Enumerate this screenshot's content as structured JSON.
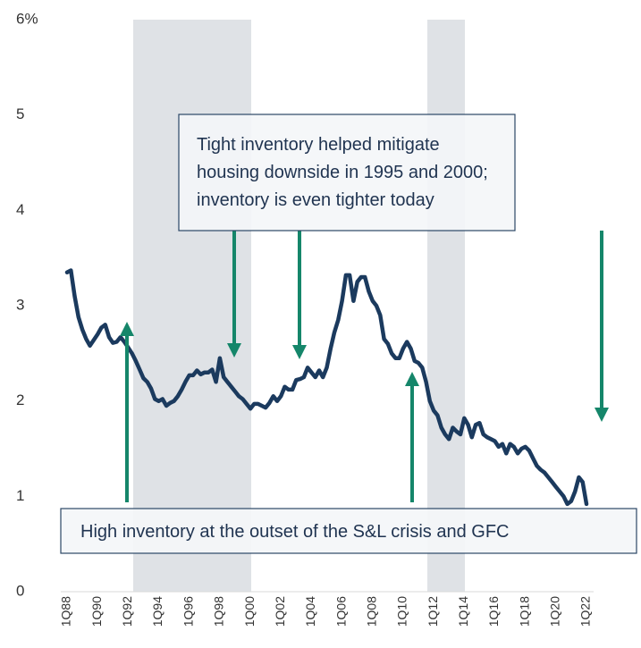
{
  "chart_data": {
    "type": "line",
    "categories": [
      "1Q88",
      null,
      null,
      null,
      null,
      null,
      null,
      null,
      "1Q90",
      null,
      null,
      null,
      null,
      null,
      null,
      null,
      "1Q92",
      null,
      null,
      null,
      null,
      null,
      null,
      null,
      "1Q94",
      null,
      null,
      null,
      null,
      null,
      null,
      null,
      "1Q96",
      null,
      null,
      null,
      null,
      null,
      null,
      null,
      "1Q98",
      null,
      null,
      null,
      null,
      null,
      null,
      null,
      "1Q00",
      null,
      null,
      null,
      null,
      null,
      null,
      null,
      "1Q02",
      null,
      null,
      null,
      null,
      null,
      null,
      null,
      "1Q04",
      null,
      null,
      null,
      null,
      null,
      null,
      null,
      "1Q06",
      null,
      null,
      null,
      null,
      null,
      null,
      null,
      "1Q08",
      null,
      null,
      null,
      null,
      null,
      null,
      null,
      "1Q10",
      null,
      null,
      null,
      null,
      null,
      null,
      null,
      "1Q12",
      null,
      null,
      null,
      null,
      null,
      null,
      null,
      "1Q14",
      null,
      null,
      null,
      null,
      null,
      null,
      null,
      "1Q16",
      null,
      null,
      null,
      null,
      null,
      null,
      null,
      "1Q18",
      null,
      null,
      null,
      null,
      null,
      null,
      null,
      "1Q20",
      null,
      null,
      null,
      null,
      null,
      null,
      null,
      "1Q22"
    ],
    "series": [
      {
        "color": "#1b3a5e",
        "values": [
          3.35,
          3.37,
          3.1,
          2.88,
          2.75,
          2.65,
          2.58,
          2.64,
          2.7,
          2.77,
          2.8,
          2.67,
          2.61,
          2.62,
          2.67,
          2.62,
          2.56,
          2.5,
          2.42,
          2.33,
          2.24,
          2.2,
          2.13,
          2.02,
          2.0,
          2.02,
          1.95,
          1.98,
          2.0,
          2.05,
          2.12,
          2.2,
          2.27,
          2.27,
          2.32,
          2.28,
          2.3,
          2.3,
          2.33,
          2.2,
          2.45,
          2.25,
          2.2,
          2.15,
          2.1,
          2.05,
          2.02,
          1.97,
          1.92,
          1.97,
          1.97,
          1.95,
          1.93,
          1.98,
          2.05,
          2.0,
          2.05,
          2.15,
          2.12,
          2.12,
          2.22,
          2.23,
          2.25,
          2.35,
          2.3,
          2.25,
          2.32,
          2.25,
          2.35,
          2.55,
          2.72,
          2.85,
          3.05,
          3.32,
          3.32,
          3.05,
          3.25,
          3.3,
          3.3,
          3.15,
          3.05,
          3.0,
          2.9,
          2.65,
          2.6,
          2.5,
          2.45,
          2.45,
          2.55,
          2.62,
          2.55,
          2.42,
          2.4,
          2.35,
          2.2,
          2.0,
          1.9,
          1.85,
          1.72,
          1.65,
          1.6,
          1.72,
          1.68,
          1.65,
          1.82,
          1.75,
          1.62,
          1.75,
          1.77,
          1.65,
          1.62,
          1.6,
          1.58,
          1.52,
          1.55,
          1.45,
          1.55,
          1.52,
          1.45,
          1.5,
          1.52,
          1.48,
          1.4,
          1.32,
          1.28,
          1.25,
          1.2,
          1.15,
          1.1,
          1.05,
          1.0,
          0.92,
          0.95,
          1.05,
          1.2,
          1.15,
          0.92
        ]
      }
    ],
    "ylim": [
      0,
      6
    ],
    "yticks": [
      0,
      1,
      2,
      3,
      4,
      5,
      {
        "value": 6,
        "label": "6%"
      }
    ],
    "annotations": [
      {
        "lines": [
          "Tight inventory helped mitigate",
          "housing downside in 1995 and 2000;",
          "inventory is even tighter today"
        ]
      },
      {
        "lines": [
          "High inventory at the outset of the S&L crisis and GFC"
        ]
      }
    ]
  }
}
